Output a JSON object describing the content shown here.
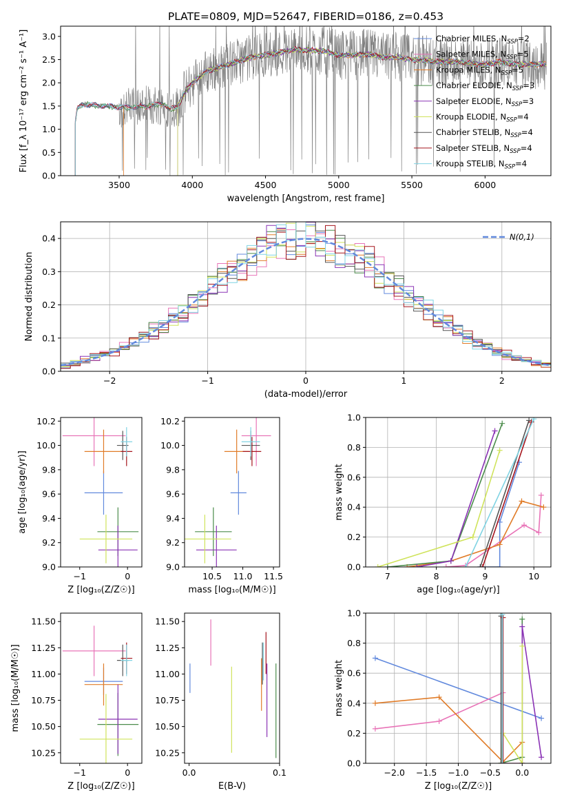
{
  "figure_title": "PLATE=0809, MJD=52647, FIBERID=0186, z=0.453",
  "models": [
    {
      "name": "Chabrier MILES",
      "nssp": "2",
      "color": "#6189dd"
    },
    {
      "name": "Salpeter MILES",
      "nssp": "5",
      "color": "#e873b7"
    },
    {
      "name": "Kroupa MILES",
      "nssp": "5",
      "color": "#e07b27"
    },
    {
      "name": "Chabrier ELODIE",
      "nssp": "3",
      "color": "#4a8b4a"
    },
    {
      "name": "Salpeter ELODIE",
      "nssp": "3",
      "color": "#8a32b5"
    },
    {
      "name": "Kroupa ELODIE",
      "nssp": "4",
      "color": "#cfe35a"
    },
    {
      "name": "Chabrier STELIB",
      "nssp": "4",
      "color": "#555555"
    },
    {
      "name": "Salpeter STELIB",
      "nssp": "4",
      "color": "#a5141c"
    },
    {
      "name": "Kroupa STELIB",
      "nssp": "4",
      "color": "#7fd3e3"
    }
  ],
  "chart_data": [
    {
      "id": "spectrum",
      "type": "line",
      "xlabel": "wavelength [Angstrom, rest frame]",
      "ylabel": "Flux [f_λ 10⁻¹⁷ erg cm⁻² s⁻¹ A⁻¹]",
      "xlim": [
        3100,
        6450
      ],
      "ylim": [
        0,
        3.22
      ],
      "xticks": [
        3500,
        4000,
        4500,
        5000,
        5500,
        6000
      ],
      "yticks": [
        0.0,
        0.5,
        1.0,
        1.5,
        2.0,
        2.5,
        3.0
      ],
      "data_color": "#808080",
      "model_curve": {
        "x": [
          3200,
          3215,
          3260,
          3300,
          3400,
          3500,
          3560,
          3700,
          3800,
          3850,
          3900,
          3950,
          4000,
          4100,
          4200,
          4300,
          4400,
          4500,
          4600,
          4700,
          4800,
          4900,
          5000,
          5100,
          5200,
          5300,
          5400,
          5500,
          5600,
          5700,
          5800,
          5900,
          6000,
          6100,
          6200,
          6300
        ],
        "y": [
          1.15,
          1.45,
          1.55,
          1.52,
          1.5,
          1.48,
          1.47,
          1.5,
          1.55,
          1.42,
          1.5,
          1.8,
          2.0,
          2.25,
          2.35,
          2.45,
          2.55,
          2.6,
          2.65,
          2.72,
          2.7,
          2.68,
          2.6,
          2.6,
          2.62,
          2.55,
          2.55,
          2.5,
          2.48,
          2.45,
          2.45,
          2.42,
          2.4,
          2.45,
          2.4,
          2.4
        ]
      },
      "model_start_x": {
        "Kroupa MILES": 3530,
        "Kroupa ELODIE": 3900,
        "Salpeter ELODIE": 3900
      }
    },
    {
      "id": "residuals",
      "type": "bar",
      "xlabel": "(data-model)/error",
      "ylabel": "Normed distribution",
      "xlim": [
        -2.5,
        2.5
      ],
      "ylim": [
        0,
        0.45
      ],
      "xticks": [
        -2,
        -1,
        0,
        1,
        2
      ],
      "yticks": [
        0.0,
        0.1,
        0.2,
        0.3,
        0.4
      ],
      "bin_width": 0.1,
      "gaussian_label": "N(0,1)",
      "gaussian_color": "#6189dd"
    },
    {
      "id": "age_vs_Z",
      "type": "scatter",
      "xlabel": "Z [log₁₀(Z/Z☉)]",
      "ylabel": "age  [log₁₀(age/yr)]",
      "xlim": [
        -1.4,
        0.3
      ],
      "ylim": [
        9.0,
        10.23
      ],
      "xticks": [
        -1,
        0
      ],
      "yticks": [
        9.0,
        9.2,
        9.4,
        9.6,
        9.8,
        10.0,
        10.2
      ],
      "points": [
        {
          "model": "Chabrier MILES",
          "x": -0.5,
          "xerr": 0.4,
          "y": 9.61,
          "yerr": 0.18
        },
        {
          "model": "Salpeter MILES",
          "x": -0.7,
          "xerr": 0.66,
          "y": 10.08,
          "yerr": 0.25
        },
        {
          "model": "Kroupa MILES",
          "x": -0.5,
          "xerr": 0.4,
          "y": 9.95,
          "yerr": 0.18
        },
        {
          "model": "Chabrier ELODIE",
          "x": -0.2,
          "xerr": 0.43,
          "y": 9.29,
          "yerr": 0.2
        },
        {
          "model": "Salpeter ELODIE",
          "x": -0.2,
          "xerr": 0.41,
          "y": 9.14,
          "yerr": 0.2
        },
        {
          "model": "Kroupa ELODIE",
          "x": -0.45,
          "xerr": 0.55,
          "y": 9.23,
          "yerr": 0.2
        },
        {
          "model": "Chabrier STELIB",
          "x": -0.1,
          "xerr": 0.12,
          "y": 10.0,
          "yerr": 0.12
        },
        {
          "model": "Salpeter STELIB",
          "x": -0.02,
          "xerr": 0.12,
          "y": 9.95,
          "yerr": 0.12
        },
        {
          "model": "Kroupa STELIB",
          "x": -0.02,
          "xerr": 0.12,
          "y": 10.03,
          "yerr": 0.12
        }
      ]
    },
    {
      "id": "age_vs_mass",
      "type": "scatter",
      "xlabel": "mass [log₁₀(M/M☉)]",
      "ylabel": "",
      "xlim": [
        10.05,
        11.6
      ],
      "ylim": [
        9.0,
        10.23
      ],
      "xticks": [
        10.5,
        11.0,
        11.5
      ],
      "yticks": [
        9.0,
        9.2,
        9.4,
        9.6,
        9.8,
        10.0,
        10.2
      ],
      "points": [
        {
          "model": "Chabrier MILES",
          "x": 10.93,
          "xerr": 0.13,
          "y": 9.61,
          "yerr": 0.18
        },
        {
          "model": "Salpeter MILES",
          "x": 11.22,
          "xerr": 0.24,
          "y": 10.08,
          "yerr": 0.25
        },
        {
          "model": "Kroupa MILES",
          "x": 10.9,
          "xerr": 0.2,
          "y": 9.95,
          "yerr": 0.18
        },
        {
          "model": "Chabrier ELODIE",
          "x": 10.52,
          "xerr": 0.3,
          "y": 9.29,
          "yerr": 0.2
        },
        {
          "model": "Salpeter ELODIE",
          "x": 10.57,
          "xerr": 0.33,
          "y": 9.14,
          "yerr": 0.2
        },
        {
          "model": "Kroupa ELODIE",
          "x": 10.38,
          "xerr": 0.43,
          "y": 9.23,
          "yerr": 0.2
        },
        {
          "model": "Chabrier STELIB",
          "x": 11.13,
          "xerr": 0.15,
          "y": 10.0,
          "yerr": 0.12
        },
        {
          "model": "Salpeter STELIB",
          "x": 11.15,
          "xerr": 0.15,
          "y": 9.95,
          "yerr": 0.12
        },
        {
          "model": "Kroupa STELIB",
          "x": 11.13,
          "xerr": 0.15,
          "y": 10.03,
          "yerr": 0.12
        }
      ]
    },
    {
      "id": "weight_vs_age",
      "type": "line",
      "xlabel": "age  [log₁₀(age/yr)]",
      "ylabel": "mass weight",
      "xlim": [
        6.55,
        10.35
      ],
      "ylim": [
        0,
        1.0
      ],
      "xticks": [
        7,
        8,
        9,
        10
      ],
      "yticks": [
        0.0,
        0.2,
        0.4,
        0.6,
        0.8,
        1.0
      ],
      "series": [
        {
          "model": "Chabrier MILES",
          "x": [
            8.9,
            9.3,
            9.3,
            9.7
          ],
          "y": [
            0.0,
            0.0,
            0.3,
            0.7
          ]
        },
        {
          "model": "Salpeter MILES",
          "x": [
            8.2,
            8.6,
            9.8,
            10.1,
            10.15
          ],
          "y": [
            0.0,
            0.01,
            0.28,
            0.23,
            0.48
          ]
        },
        {
          "model": "Kroupa MILES",
          "x": [
            7.4,
            8.3,
            9.3,
            9.75,
            10.2
          ],
          "y": [
            0.0,
            0.04,
            0.15,
            0.44,
            0.4
          ]
        },
        {
          "model": "Chabrier ELODIE",
          "x": [
            7.0,
            8.3,
            9.35
          ],
          "y": [
            0.0,
            0.04,
            0.96
          ]
        },
        {
          "model": "Salpeter ELODIE",
          "x": [
            7.6,
            8.3,
            9.2
          ],
          "y": [
            0.0,
            0.04,
            0.91
          ]
        },
        {
          "model": "Kroupa ELODIE",
          "x": [
            6.8,
            8.75,
            9.3
          ],
          "y": [
            0.0,
            0.2,
            0.78
          ]
        },
        {
          "model": "Chabrier STELIB",
          "x": [
            8.9,
            9.9
          ],
          "y": [
            0.0,
            0.98
          ]
        },
        {
          "model": "Salpeter STELIB",
          "x": [
            8.95,
            9.95
          ],
          "y": [
            0.0,
            0.97
          ]
        },
        {
          "model": "Kroupa STELIB",
          "x": [
            8.6,
            10.0
          ],
          "y": [
            0.0,
            0.99
          ]
        }
      ]
    },
    {
      "id": "mass_vs_Z",
      "type": "scatter",
      "xlabel": "Z [log₁₀(Z/Z☉)]",
      "ylabel": "mass [log₁₀(M/M☉)]",
      "xlim": [
        -1.4,
        0.3
      ],
      "ylim": [
        10.15,
        11.58
      ],
      "xticks": [
        -1,
        0
      ],
      "yticks": [
        10.25,
        10.5,
        10.75,
        11.0,
        11.25,
        11.5
      ],
      "points": [
        {
          "model": "Chabrier MILES",
          "x": -0.5,
          "xerr": 0.4,
          "y": 10.93,
          "yerr": 0.13
        },
        {
          "model": "Salpeter MILES",
          "x": -0.7,
          "xerr": 0.66,
          "y": 11.22,
          "yerr": 0.24
        },
        {
          "model": "Kroupa MILES",
          "x": -0.5,
          "xerr": 0.4,
          "y": 10.9,
          "yerr": 0.2
        },
        {
          "model": "Chabrier ELODIE",
          "x": -0.2,
          "xerr": 0.43,
          "y": 10.52,
          "yerr": 0.3
        },
        {
          "model": "Salpeter ELODIE",
          "x": -0.2,
          "xerr": 0.41,
          "y": 10.57,
          "yerr": 0.33
        },
        {
          "model": "Kroupa ELODIE",
          "x": -0.45,
          "xerr": 0.55,
          "y": 10.38,
          "yerr": 0.43
        },
        {
          "model": "Chabrier STELIB",
          "x": -0.1,
          "xerr": 0.12,
          "y": 11.13,
          "yerr": 0.15
        },
        {
          "model": "Salpeter STELIB",
          "x": -0.02,
          "xerr": 0.12,
          "y": 11.15,
          "yerr": 0.15
        },
        {
          "model": "Kroupa STELIB",
          "x": -0.02,
          "xerr": 0.12,
          "y": 11.13,
          "yerr": 0.15
        }
      ]
    },
    {
      "id": "mass_vs_ebv",
      "type": "scatter",
      "xlabel": "E(B-V)",
      "ylabel": "",
      "xlim": [
        -0.005,
        0.1
      ],
      "ylim": [
        10.15,
        11.58
      ],
      "xticks": [
        0.0,
        0.1
      ],
      "yticks": [
        10.25,
        10.5,
        10.75,
        11.0,
        11.25,
        11.5
      ],
      "points": [
        {
          "model": "Chabrier MILES",
          "x": 0.001,
          "y": 10.96,
          "yerr": 0.14
        },
        {
          "model": "Salpeter MILES",
          "x": 0.024,
          "y": 11.3,
          "yerr": 0.22
        },
        {
          "model": "Kroupa MILES",
          "x": 0.08,
          "y": 10.9,
          "yerr": 0.25
        },
        {
          "model": "Chabrier ELODIE",
          "x": 0.096,
          "y": 10.65,
          "yerr": 0.45
        },
        {
          "model": "Salpeter ELODIE",
          "x": 0.086,
          "y": 10.75,
          "yerr": 0.35
        },
        {
          "model": "Kroupa ELODIE",
          "x": 0.047,
          "y": 10.66,
          "yerr": 0.41
        },
        {
          "model": "Chabrier STELIB",
          "x": 0.081,
          "y": 11.1,
          "yerr": 0.2
        },
        {
          "model": "Salpeter STELIB",
          "x": 0.085,
          "y": 11.2,
          "yerr": 0.2
        },
        {
          "model": "Kroupa STELIB",
          "x": 0.082,
          "y": 11.12,
          "yerr": 0.18
        }
      ]
    },
    {
      "id": "weight_vs_Z",
      "type": "line",
      "xlabel": "Z [log₁₀(Z/Z☉)]",
      "ylabel": "mass weight",
      "xlim": [
        -2.45,
        0.45
      ],
      "ylim": [
        0,
        1.0
      ],
      "xticks": [
        -2.0,
        -1.5,
        -1.0,
        -0.5,
        0.0
      ],
      "yticks": [
        0.0,
        0.2,
        0.4,
        0.6,
        0.8,
        1.0
      ],
      "series": [
        {
          "model": "Chabrier MILES",
          "x": [
            -2.3,
            0.3
          ],
          "y": [
            0.7,
            0.3
          ]
        },
        {
          "model": "Salpeter MILES",
          "x": [
            -2.3,
            -1.3,
            -0.3,
            -0.3,
            0.0
          ],
          "y": [
            0.23,
            0.28,
            0.47,
            0.0,
            0.0
          ]
        },
        {
          "model": "Kroupa MILES",
          "x": [
            -2.3,
            -1.3,
            -0.3,
            0.0,
            0.0
          ],
          "y": [
            0.4,
            0.44,
            0.01,
            0.14,
            0.0
          ]
        },
        {
          "model": "Chabrier ELODIE",
          "x": [
            -0.33,
            0.0,
            0.0
          ],
          "y": [
            0.0,
            0.04,
            0.96
          ]
        },
        {
          "model": "Salpeter ELODIE",
          "x": [
            0.0,
            0.0,
            0.3
          ],
          "y": [
            0.0,
            0.91,
            0.04
          ]
        },
        {
          "model": "Kroupa ELODIE",
          "x": [
            -0.33,
            -0.3,
            0.0,
            0.0
          ],
          "y": [
            0.0,
            0.2,
            0.0,
            0.78
          ]
        },
        {
          "model": "Chabrier STELIB",
          "x": [
            -0.33,
            -0.33
          ],
          "y": [
            0.0,
            0.98
          ]
        },
        {
          "model": "Salpeter STELIB",
          "x": [
            -0.3,
            -0.3
          ],
          "y": [
            0.0,
            0.97
          ]
        },
        {
          "model": "Kroupa STELIB",
          "x": [
            -0.31,
            -0.31
          ],
          "y": [
            0.0,
            0.99
          ]
        }
      ]
    }
  ]
}
